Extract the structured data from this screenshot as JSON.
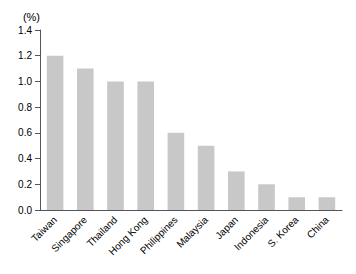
{
  "chart_data": {
    "type": "bar",
    "ylabel": "(%)",
    "categories": [
      "Taiwan",
      "Singapore",
      "Thailand",
      "Hong Kong",
      "Philippines",
      "Malaysia",
      "Japan",
      "Indonesia",
      "S. Korea",
      "China"
    ],
    "values": [
      1.2,
      1.1,
      1.0,
      1.0,
      0.6,
      0.5,
      0.3,
      0.2,
      0.1,
      0.1
    ],
    "color": "#c8c8c8",
    "ylim": [
      0,
      1.4
    ],
    "yticks": [
      {
        "value": 0,
        "label": "0.0"
      },
      0.2,
      0.4,
      0.6,
      0.8,
      {
        "value": 1,
        "label": "1.0"
      },
      1.2,
      1.4
    ],
    "grid": false
  }
}
